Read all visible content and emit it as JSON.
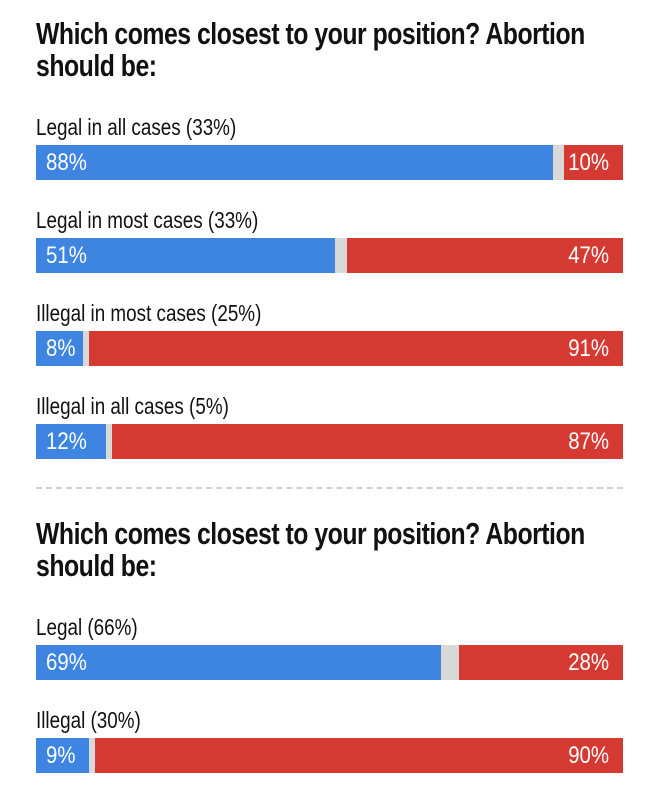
{
  "colors": {
    "legal_side": "#3d85e0",
    "illegal_side": "#d43a32",
    "gap": "#d9d9d9"
  },
  "chart_data": [
    {
      "type": "bar",
      "title": "Which comes closest to your position? Abortion should be:",
      "categories": [
        "Legal in all cases (33%)",
        "Legal in most cases (33%)",
        "Illegal in most cases (25%)",
        "Illegal in all cases (5%)"
      ],
      "series": [
        {
          "values": [
            88,
            51,
            8,
            12
          ]
        },
        {
          "values": [
            10,
            47,
            91,
            87
          ]
        }
      ],
      "xlim": [
        0,
        100
      ]
    },
    {
      "type": "bar",
      "title": "Which comes closest to your position? Abortion should be:",
      "categories": [
        "Legal (66%)",
        "Illegal (30%)"
      ],
      "series": [
        {
          "values": [
            69,
            9
          ]
        },
        {
          "values": [
            28,
            90
          ]
        }
      ],
      "xlim": [
        0,
        100
      ]
    }
  ]
}
